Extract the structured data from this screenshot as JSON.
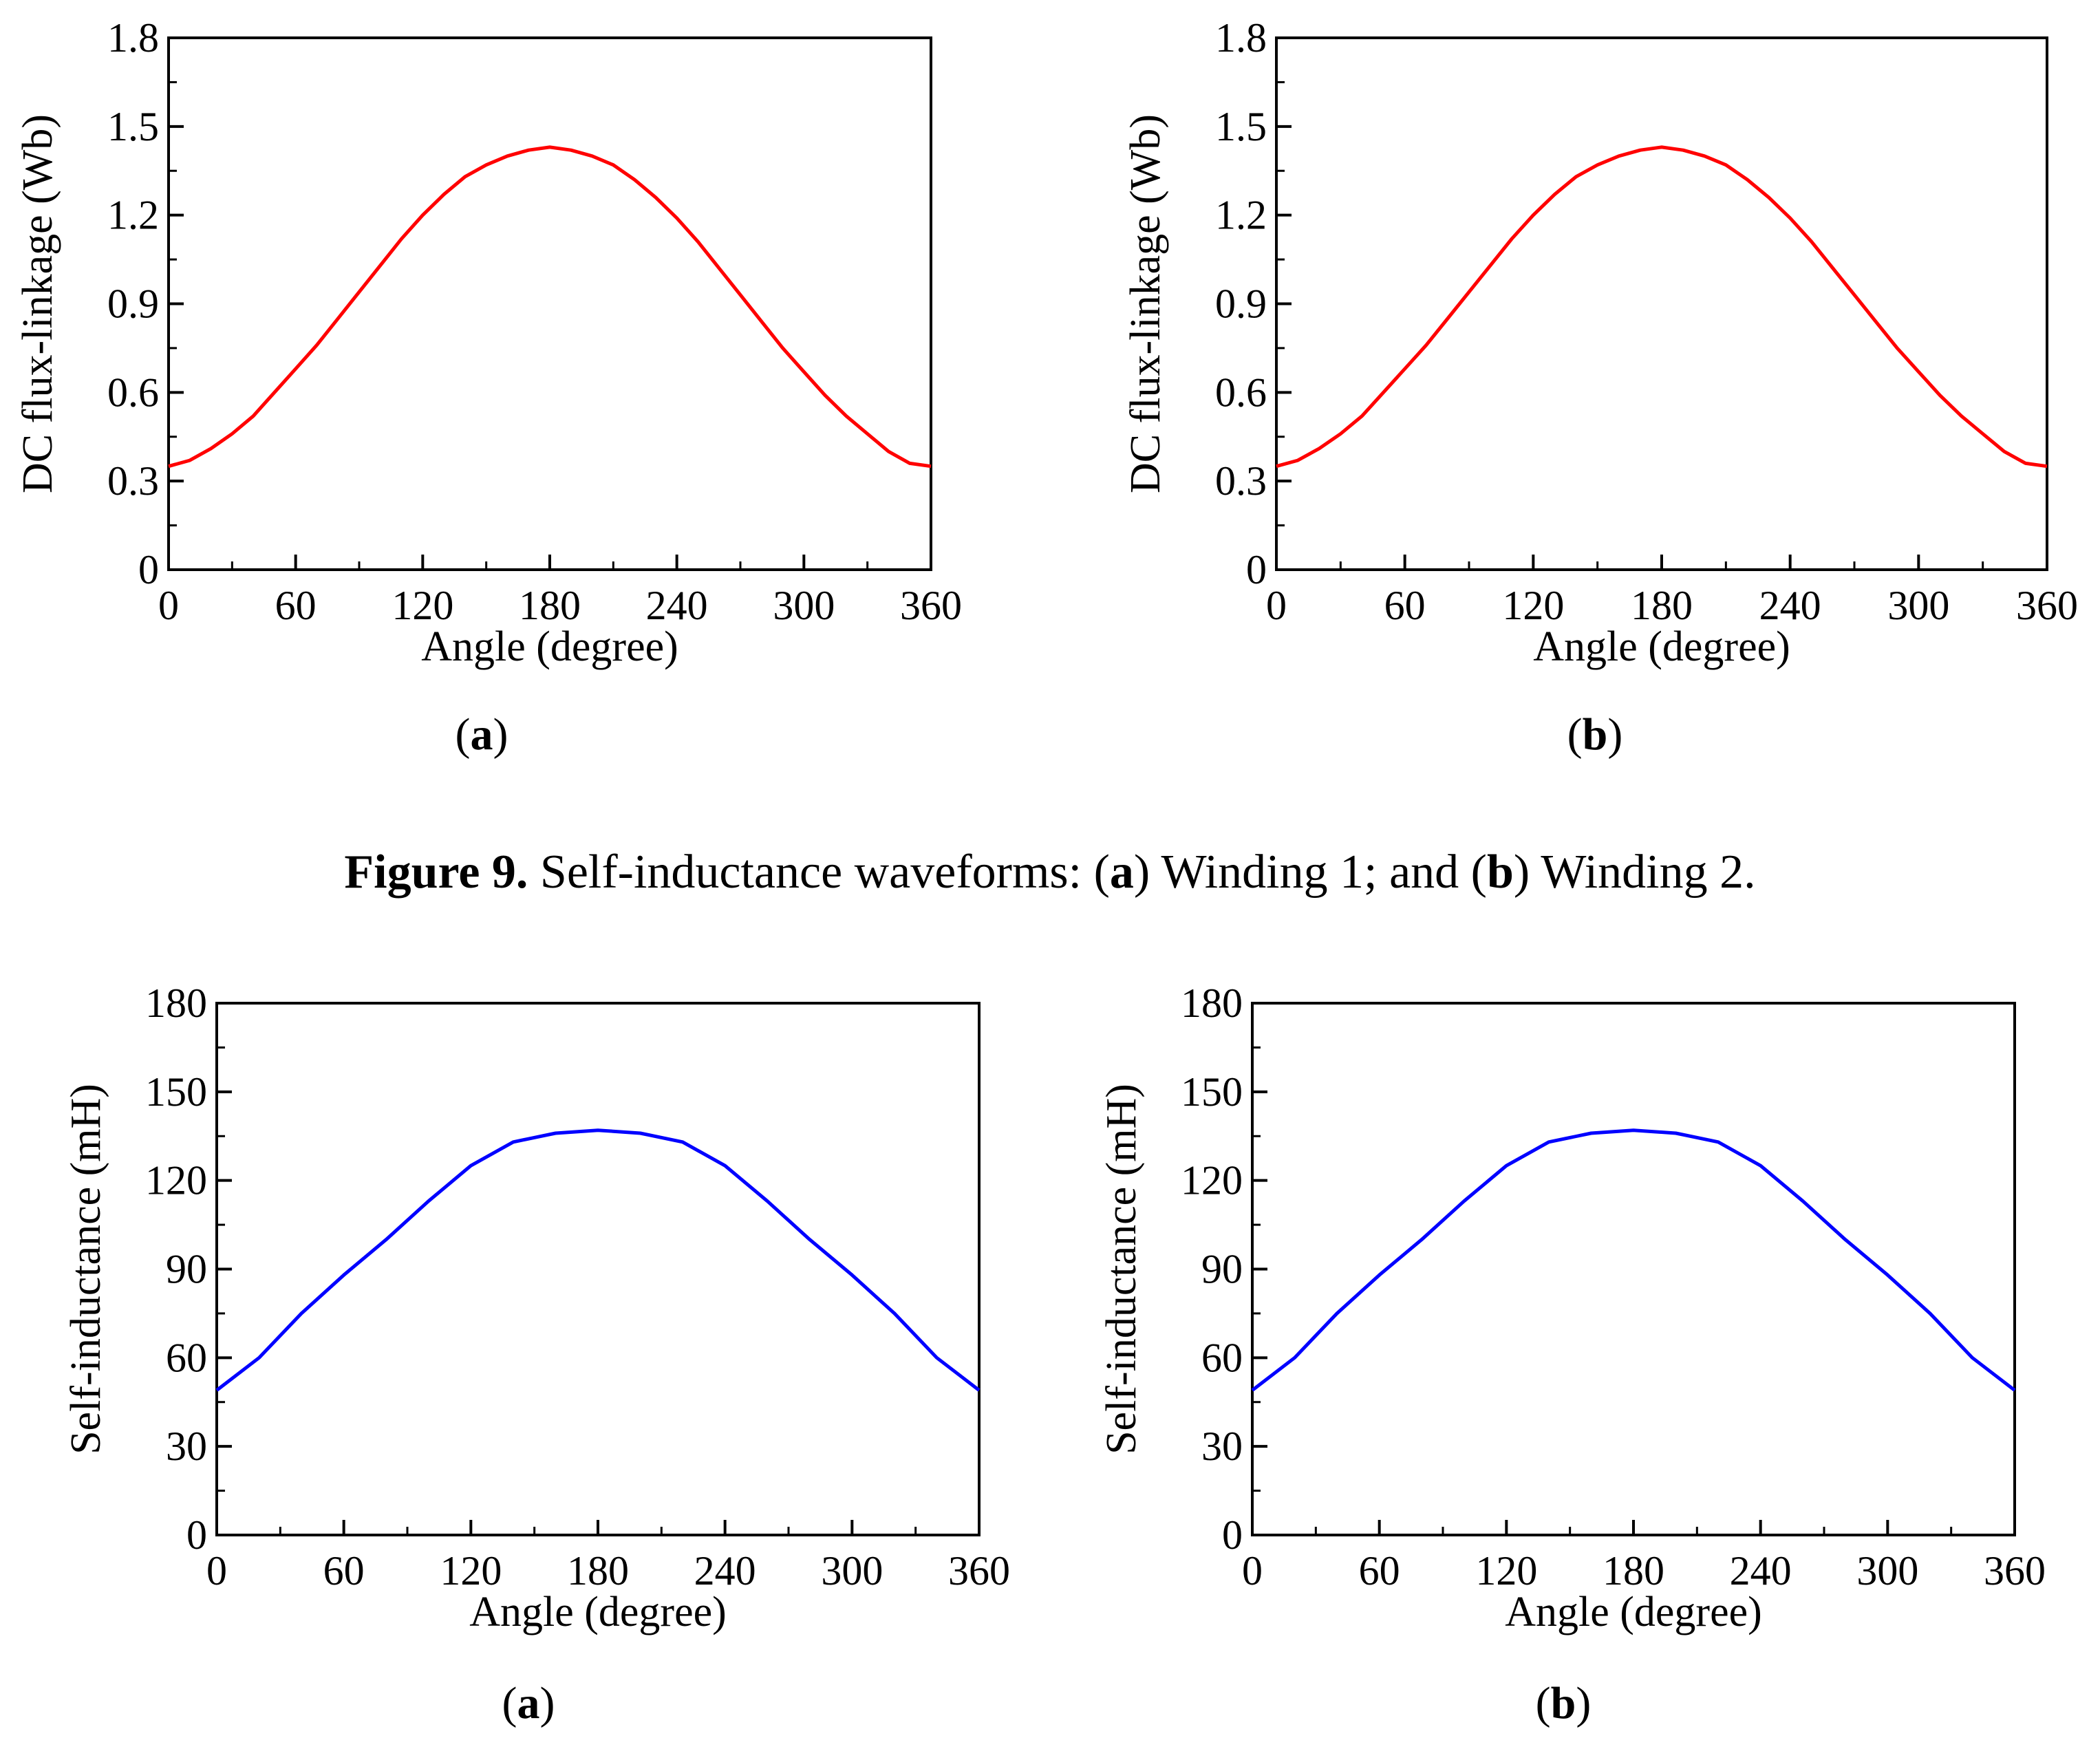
{
  "caption": {
    "figure_label": "Figure 9.",
    "text_1": " Self-inductance waveforms: (",
    "a": "a",
    "text_2": ") Winding 1; and (",
    "b": "b",
    "text_3": ") Winding 2."
  },
  "panels": [
    {
      "open": "(",
      "letter": "a",
      "close": ")"
    },
    {
      "open": "(",
      "letter": "b",
      "close": ")"
    },
    {
      "open": "(",
      "letter": "a",
      "close": ")"
    },
    {
      "open": "(",
      "letter": "b",
      "close": ")"
    }
  ],
  "colors": {
    "red": "#ff0000",
    "blue": "#0000ff"
  },
  "chart_data": [
    {
      "type": "line",
      "title": "",
      "xlabel": "Angle (degree)",
      "ylabel": "DC flux-linkage (Wb)",
      "xlim": [
        0,
        360
      ],
      "ylim": [
        0,
        1.8
      ],
      "xticks": [
        "0",
        "60",
        "120",
        "180",
        "240",
        "300",
        "360"
      ],
      "yticks": [
        "0",
        "0.3",
        "0.6",
        "0.9",
        "1.2",
        "1.5",
        "1.8"
      ],
      "grid": false,
      "series": [
        {
          "name": "DC flux-linkage",
          "color": "#ff0000",
          "x": [
            0,
            10,
            20,
            30,
            40,
            50,
            60,
            70,
            80,
            90,
            100,
            110,
            120,
            130,
            140,
            150,
            160,
            170,
            180,
            190,
            200,
            210,
            220,
            230,
            240,
            250,
            260,
            270,
            280,
            290,
            300,
            310,
            320,
            330,
            340,
            350,
            360
          ],
          "y": [
            0.35,
            0.37,
            0.41,
            0.46,
            0.52,
            0.6,
            0.68,
            0.76,
            0.85,
            0.94,
            1.03,
            1.12,
            1.2,
            1.27,
            1.33,
            1.37,
            1.4,
            1.42,
            1.43,
            1.42,
            1.4,
            1.37,
            1.32,
            1.26,
            1.19,
            1.11,
            1.02,
            0.93,
            0.84,
            0.75,
            0.67,
            0.59,
            0.52,
            0.46,
            0.4,
            0.36,
            0.35
          ]
        }
      ]
    },
    {
      "type": "line",
      "title": "",
      "xlabel": "Angle (degree)",
      "ylabel": "DC flux-linkage (Wb)",
      "xlim": [
        0,
        360
      ],
      "ylim": [
        0,
        1.8
      ],
      "xticks": [
        "0",
        "60",
        "120",
        "180",
        "240",
        "300",
        "360"
      ],
      "yticks": [
        "0",
        "0.3",
        "0.6",
        "0.9",
        "1.2",
        "1.5",
        "1.8"
      ],
      "grid": false,
      "series": [
        {
          "name": "DC flux-linkage",
          "color": "#ff0000",
          "x": [
            0,
            10,
            20,
            30,
            40,
            50,
            60,
            70,
            80,
            90,
            100,
            110,
            120,
            130,
            140,
            150,
            160,
            170,
            180,
            190,
            200,
            210,
            220,
            230,
            240,
            250,
            260,
            270,
            280,
            290,
            300,
            310,
            320,
            330,
            340,
            350,
            360
          ],
          "y": [
            0.35,
            0.37,
            0.41,
            0.46,
            0.52,
            0.6,
            0.68,
            0.76,
            0.85,
            0.94,
            1.03,
            1.12,
            1.2,
            1.27,
            1.33,
            1.37,
            1.4,
            1.42,
            1.43,
            1.42,
            1.4,
            1.37,
            1.32,
            1.26,
            1.19,
            1.11,
            1.02,
            0.93,
            0.84,
            0.75,
            0.67,
            0.59,
            0.52,
            0.46,
            0.4,
            0.36,
            0.35
          ]
        }
      ]
    },
    {
      "type": "line",
      "title": "",
      "xlabel": "Angle (degree)",
      "ylabel": "Self-inductance (mH)",
      "xlim": [
        0,
        360
      ],
      "ylim": [
        0,
        180
      ],
      "xticks": [
        "0",
        "60",
        "120",
        "180",
        "240",
        "300",
        "360"
      ],
      "yticks": [
        "0",
        "30",
        "60",
        "90",
        "120",
        "150",
        "180"
      ],
      "grid": false,
      "series": [
        {
          "name": "Self-inductance",
          "color": "#0000ff",
          "x": [
            0,
            20,
            40,
            60,
            80,
            100,
            120,
            140,
            160,
            180,
            200,
            220,
            240,
            260,
            280,
            300,
            320,
            340,
            360
          ],
          "y": [
            49,
            60,
            75,
            88,
            100,
            113,
            125,
            133,
            136,
            137,
            136,
            133,
            125,
            113,
            100,
            88,
            75,
            60,
            49
          ]
        }
      ]
    },
    {
      "type": "line",
      "title": "",
      "xlabel": "Angle (degree)",
      "ylabel": "Self-inductance (mH)",
      "xlim": [
        0,
        360
      ],
      "ylim": [
        0,
        180
      ],
      "xticks": [
        "0",
        "60",
        "120",
        "180",
        "240",
        "300",
        "360"
      ],
      "yticks": [
        "0",
        "30",
        "60",
        "90",
        "120",
        "150",
        "180"
      ],
      "grid": false,
      "series": [
        {
          "name": "Self-inductance",
          "color": "#0000ff",
          "x": [
            0,
            20,
            40,
            60,
            80,
            100,
            120,
            140,
            160,
            180,
            200,
            220,
            240,
            260,
            280,
            300,
            320,
            340,
            360
          ],
          "y": [
            49,
            60,
            75,
            88,
            100,
            113,
            125,
            133,
            136,
            137,
            136,
            133,
            125,
            113,
            100,
            88,
            75,
            60,
            49
          ]
        }
      ]
    }
  ]
}
